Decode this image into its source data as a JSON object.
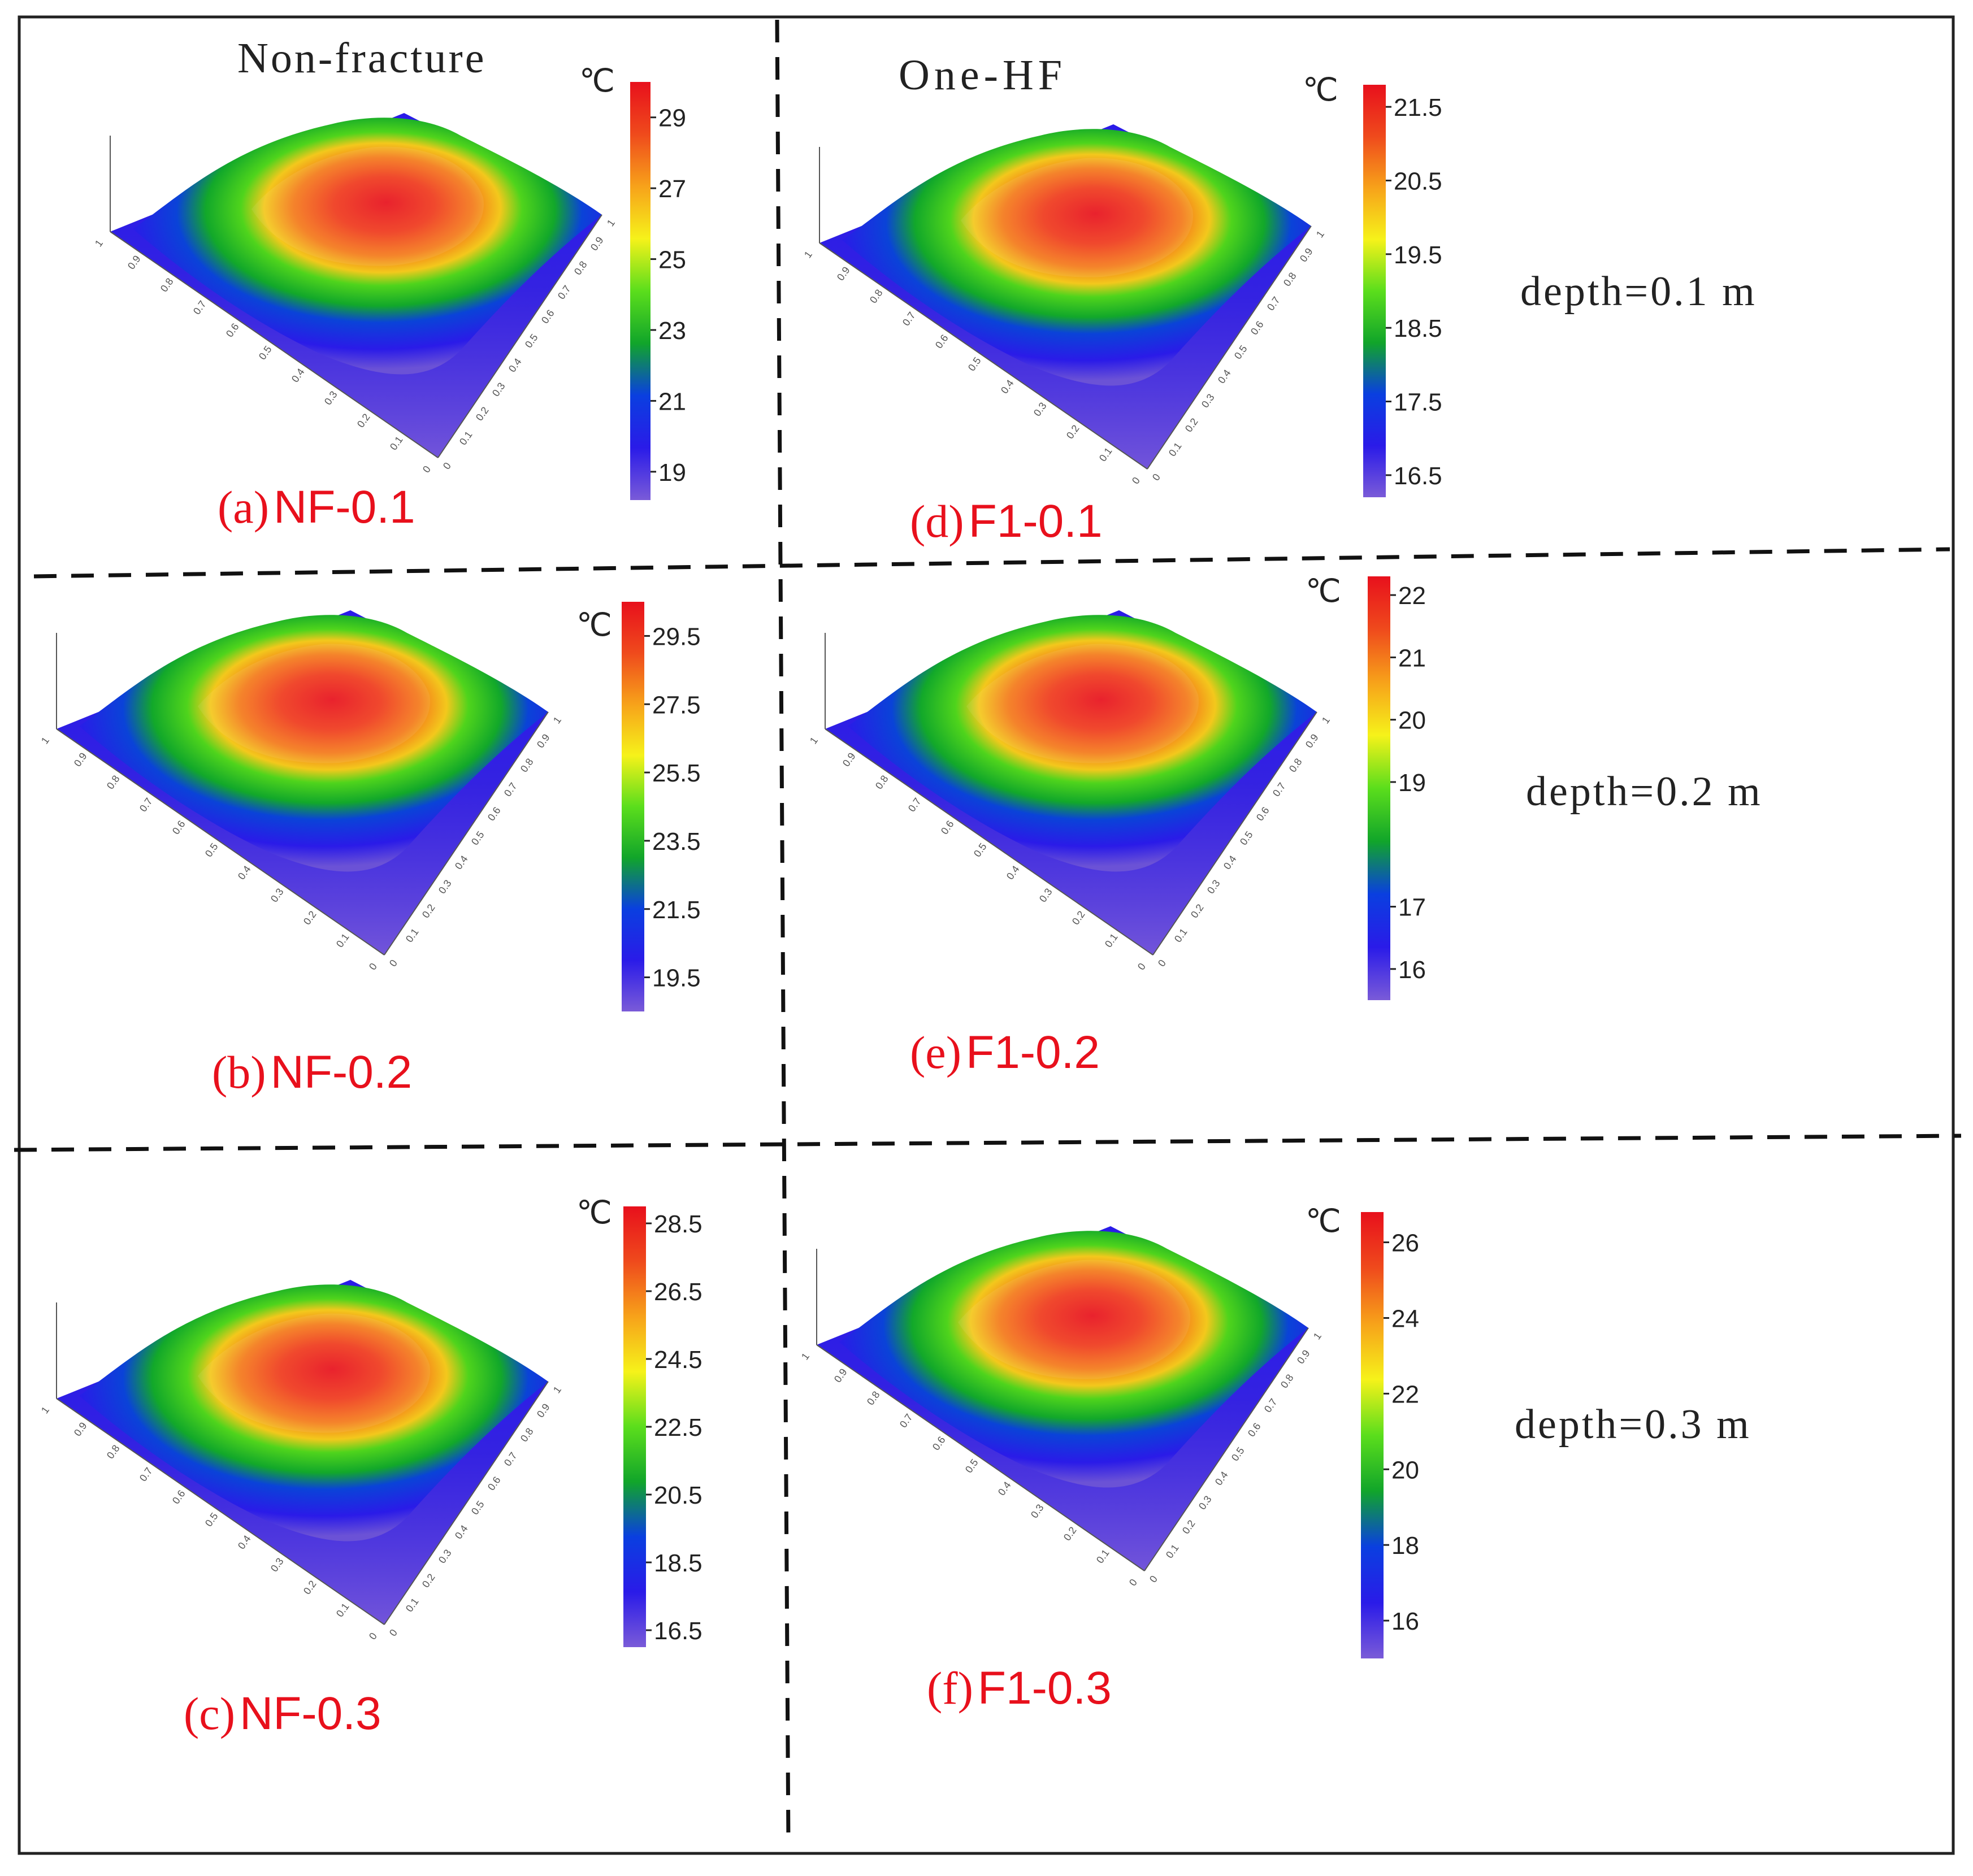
{
  "figure": {
    "column_headers": [
      "Non-fracture",
      "One-HF"
    ],
    "row_labels": [
      "depth=0.1 m",
      "depth=0.2 m",
      "depth=0.3 m"
    ]
  },
  "colorscale": [
    "#7a5bd8",
    "#2a1be8",
    "#0a3fe0",
    "#11a52a",
    "#5bde1c",
    "#f6f21a",
    "#f7a21a",
    "#ef4a1c",
    "#e8101c"
  ],
  "chart_data": [
    {
      "type": "heatmap",
      "id": "a",
      "panel_prefix": "(a)",
      "panel_name": "NF-0.1",
      "unit": "℃",
      "colorbar_ticks": [
        "29",
        "27",
        "25",
        "23",
        "21",
        "19"
      ],
      "colorbar_range": [
        18.2,
        30.0
      ]
    },
    {
      "type": "heatmap",
      "id": "b",
      "panel_prefix": "(b)",
      "panel_name": "NF-0.2",
      "unit": "℃",
      "colorbar_ticks": [
        "29.5",
        "27.5",
        "25.5",
        "23.5",
        "21.5",
        "19.5"
      ],
      "colorbar_range": [
        18.5,
        30.5
      ]
    },
    {
      "type": "heatmap",
      "id": "c",
      "panel_prefix": "(c)",
      "panel_name": "NF-0.3",
      "unit": "℃",
      "colorbar_ticks": [
        "28.5",
        "26.5",
        "24.5",
        "22.5",
        "20.5",
        "18.5",
        "16.5"
      ],
      "colorbar_range": [
        16.0,
        29.0
      ]
    },
    {
      "type": "heatmap",
      "id": "d",
      "panel_prefix": "(d)",
      "panel_name": "F1-0.1",
      "unit": "℃",
      "colorbar_ticks": [
        "21.5",
        "20.5",
        "19.5",
        "18.5",
        "17.5",
        "16.5"
      ],
      "colorbar_range": [
        16.2,
        21.8
      ]
    },
    {
      "type": "heatmap",
      "id": "e",
      "panel_prefix": "(e)",
      "panel_name": "F1-0.2",
      "unit": "℃",
      "colorbar_ticks": [
        "22",
        "21",
        "20",
        "19",
        "17",
        "16"
      ],
      "colorbar_range": [
        15.5,
        22.3
      ]
    },
    {
      "type": "heatmap",
      "id": "f",
      "panel_prefix": "(f)",
      "panel_name": "F1-0.3",
      "unit": "℃",
      "colorbar_ticks": [
        "26",
        "24",
        "22",
        "20",
        "18",
        "16"
      ],
      "colorbar_range": [
        15.0,
        26.8
      ]
    }
  ],
  "axis_ticks": [
    "0",
    "0.1",
    "0.2",
    "0.3",
    "0.4",
    "0.5",
    "0.6",
    "0.7",
    "0.8",
    "0.9",
    "1"
  ]
}
